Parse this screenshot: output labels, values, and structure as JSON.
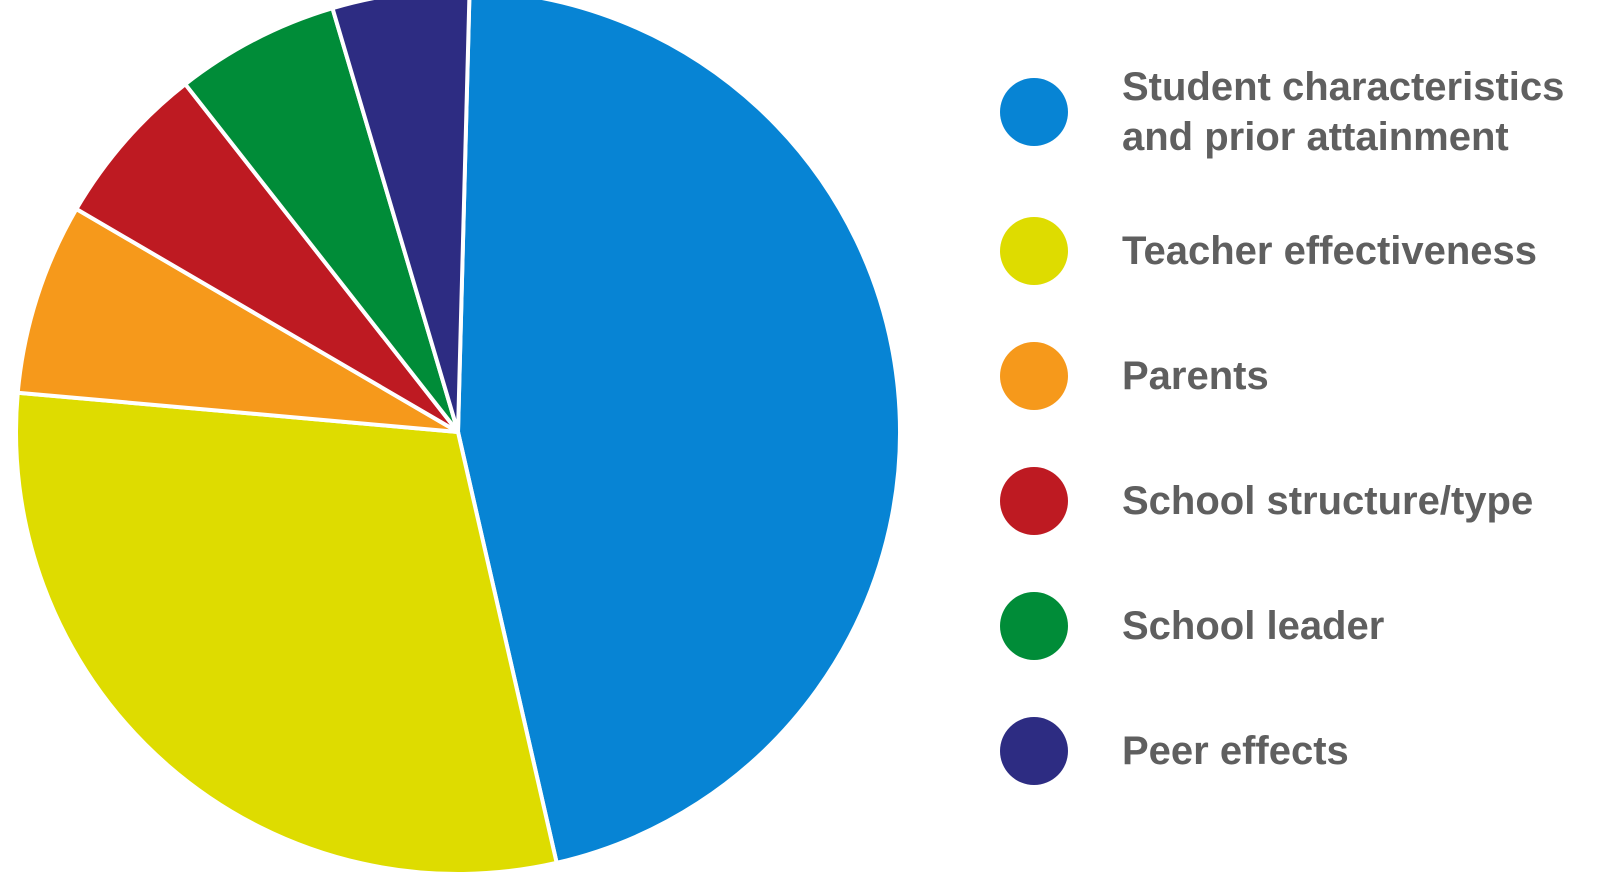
{
  "chart_data": {
    "type": "pie",
    "title": "",
    "legend_position": "right",
    "slices": [
      {
        "label": "Student characteristics and prior attainment",
        "value": 46,
        "color": "#0784D4"
      },
      {
        "label": "Teacher effectiveness",
        "value": 30,
        "color": "#DEDC00"
      },
      {
        "label": "Parents",
        "value": 7,
        "color": "#F6991B"
      },
      {
        "label": "School structure/type",
        "value": 6,
        "color": "#BE1A22"
      },
      {
        "label": "School leader",
        "value": 6,
        "color": "#008C38"
      },
      {
        "label": "Peer effects",
        "value": 5,
        "color": "#2D2C82"
      }
    ]
  }
}
